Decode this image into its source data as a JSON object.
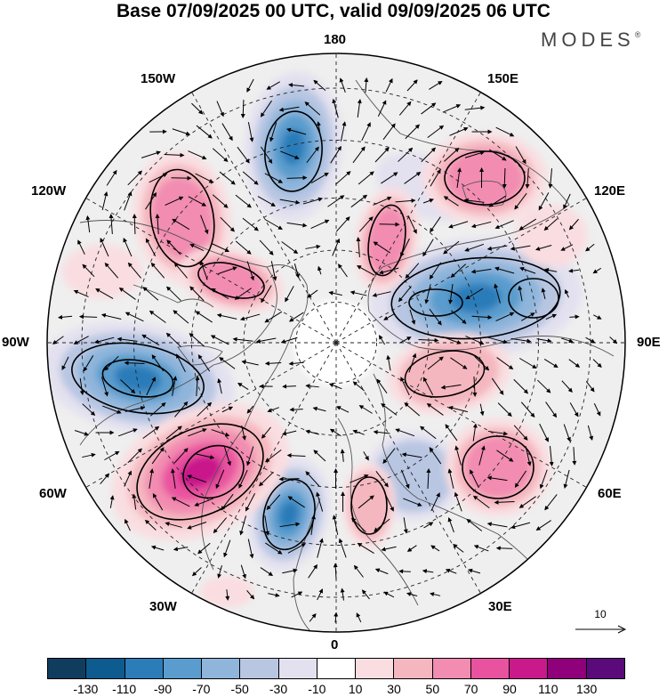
{
  "title": "Base 07/09/2025 00 UTC, valid 09/09/2025 06 UTC",
  "brand": "MODES",
  "brand_mark": "®",
  "longitude_labels": {
    "n180": "180",
    "w150": "150W",
    "e150": "150E",
    "w120": "120W",
    "e120": "120E",
    "w90": "90W",
    "e90": "90E",
    "w60": "60W",
    "e60": "60E",
    "w30": "30W",
    "e30": "30E",
    "s0": "0"
  },
  "reference_vector": {
    "label": "10"
  },
  "colorbar": {
    "colors": [
      "#103d5e",
      "#0e5b8f",
      "#2c7cb9",
      "#5a9ccd",
      "#8fb5db",
      "#b8c6e2",
      "#e3e1ef",
      "#ffffff",
      "#f9dde0",
      "#f4b7bf",
      "#f28cb1",
      "#e9529f",
      "#c9198b",
      "#8f007a",
      "#5a0a7a"
    ],
    "tick_labels": [
      "-130",
      "-110",
      "-90",
      "-70",
      "-50",
      "-30",
      "-10",
      "10",
      "30",
      "50",
      "70",
      "90",
      "110",
      "130"
    ]
  }
}
